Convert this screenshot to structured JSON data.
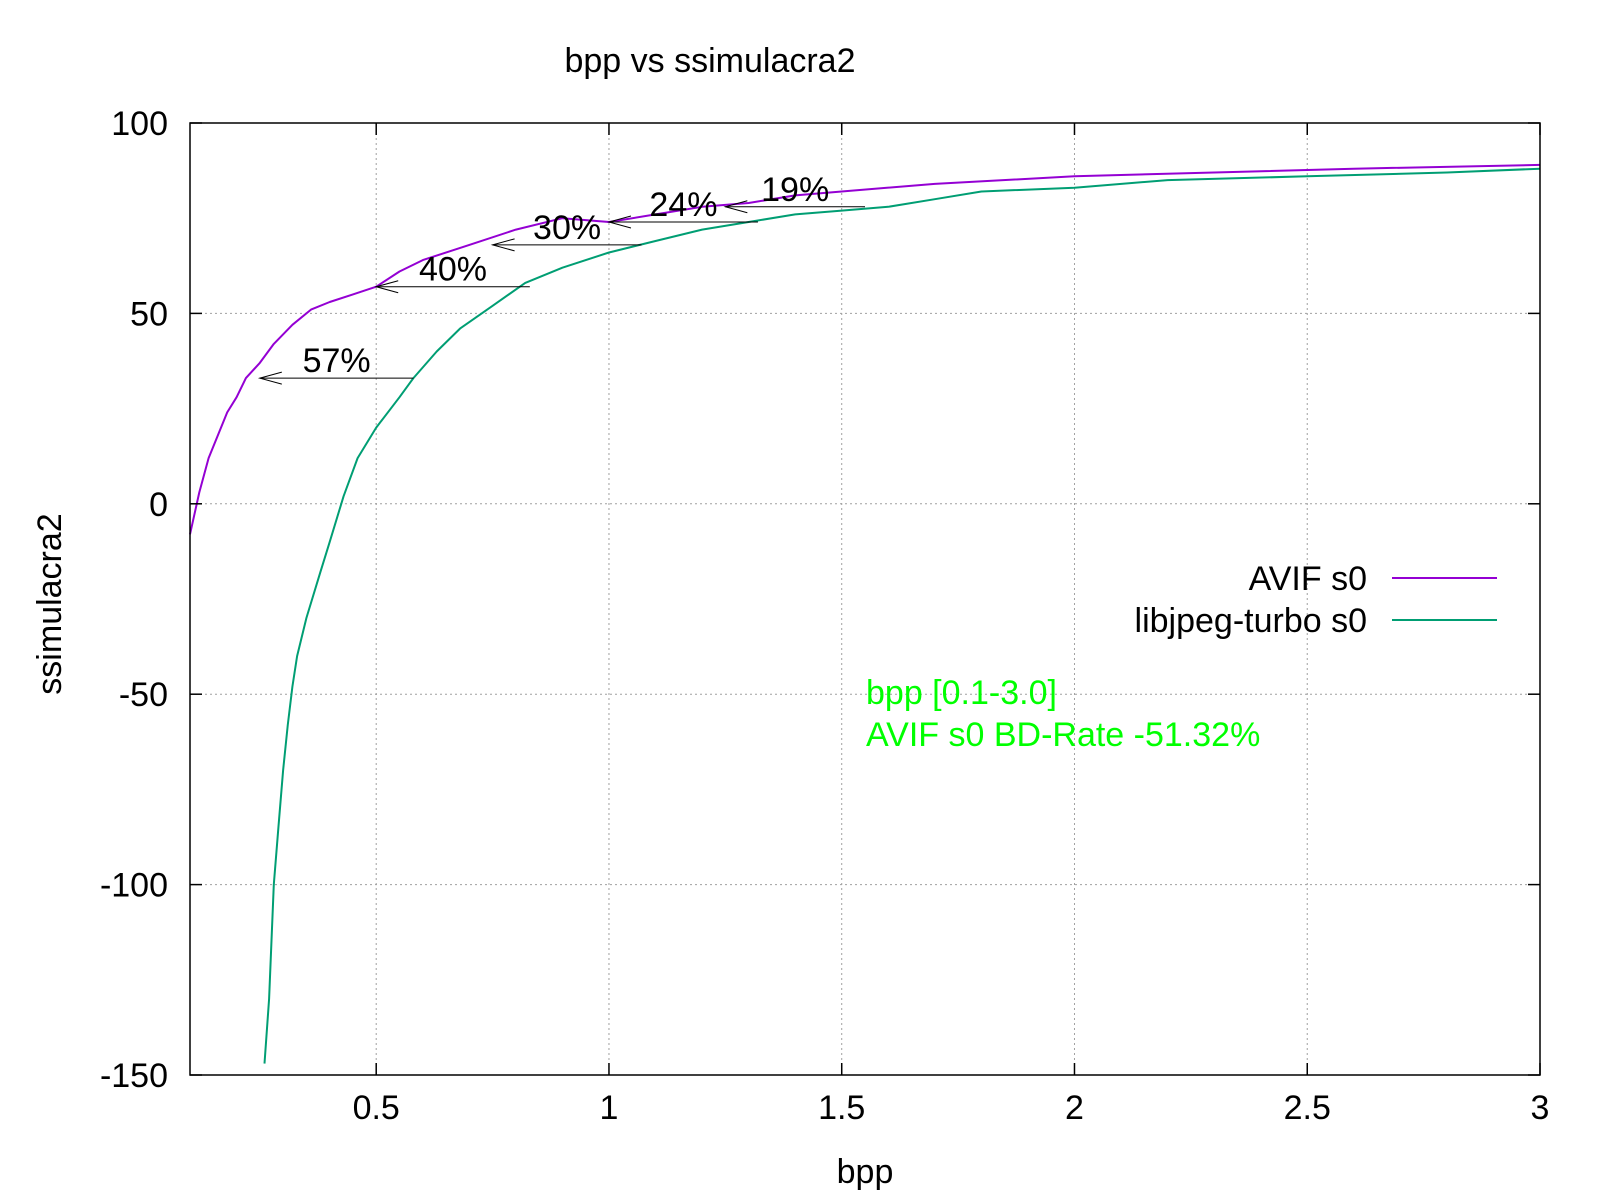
{
  "chart_data": {
    "type": "line",
    "title": "bpp vs ssimulacra2",
    "xlabel": "bpp",
    "ylabel": "ssimulacra2",
    "xlim": [
      0.1,
      3.0
    ],
    "ylim": [
      -150,
      100
    ],
    "xticks": [
      0.5,
      1,
      1.5,
      2,
      2.5,
      3
    ],
    "xtick_labels": [
      "0.5",
      "1",
      "1.5",
      "2",
      "2.5",
      "3"
    ],
    "yticks": [
      -150,
      -100,
      -50,
      0,
      50,
      100
    ],
    "ytick_labels": [
      "-150",
      "-100",
      "-50",
      "0",
      "50",
      "100"
    ],
    "grid": true,
    "legend_position": "right",
    "series": [
      {
        "name": "AVIF s0",
        "color": "#9400d3",
        "x": [
          0.1,
          0.12,
          0.14,
          0.16,
          0.18,
          0.2,
          0.22,
          0.25,
          0.28,
          0.32,
          0.36,
          0.4,
          0.45,
          0.5,
          0.55,
          0.6,
          0.7,
          0.8,
          0.9,
          1.0,
          1.1,
          1.2,
          1.3,
          1.4,
          1.5,
          1.7,
          2.0,
          2.3,
          2.6,
          3.0
        ],
        "y": [
          -8,
          3,
          12,
          18,
          24,
          28,
          33,
          37,
          42,
          47,
          51,
          53,
          55,
          57,
          61,
          64,
          68,
          72,
          75,
          74,
          76,
          78,
          79,
          81,
          82,
          84,
          86,
          87,
          88,
          89
        ]
      },
      {
        "name": "libjpeg-turbo s0",
        "color": "#009e73",
        "x": [
          0.26,
          0.27,
          0.28,
          0.29,
          0.3,
          0.31,
          0.32,
          0.33,
          0.35,
          0.38,
          0.4,
          0.43,
          0.46,
          0.5,
          0.55,
          0.58,
          0.63,
          0.68,
          0.75,
          0.82,
          0.9,
          1.0,
          1.1,
          1.2,
          1.3,
          1.4,
          1.5,
          1.6,
          1.7,
          1.8,
          2.0,
          2.2,
          2.5,
          2.8,
          3.0
        ],
        "y": [
          -147,
          -130,
          -100,
          -85,
          -70,
          -58,
          -48,
          -40,
          -30,
          -18,
          -10,
          2,
          12,
          20,
          28,
          33,
          40,
          46,
          52,
          58,
          62,
          66,
          69,
          72,
          74,
          76,
          77,
          78,
          80,
          82,
          83,
          85,
          86,
          87,
          88
        ]
      }
    ],
    "annotations": [
      {
        "text": "57%",
        "y": 33,
        "x_from": 0.58,
        "x_to": 0.25
      },
      {
        "text": "40%",
        "y": 57,
        "x_from": 0.83,
        "x_to": 0.5
      },
      {
        "text": "30%",
        "y": 68,
        "x_from": 1.07,
        "x_to": 0.75
      },
      {
        "text": "24%",
        "y": 74,
        "x_from": 1.32,
        "x_to": 1.0
      },
      {
        "text": "19%",
        "y": 78,
        "x_from": 1.55,
        "x_to": 1.25
      }
    ],
    "info_lines": [
      "bpp [0.1-3.0]",
      "AVIF s0 BD-Rate -51.32%"
    ],
    "info_color": "#00ff00"
  }
}
